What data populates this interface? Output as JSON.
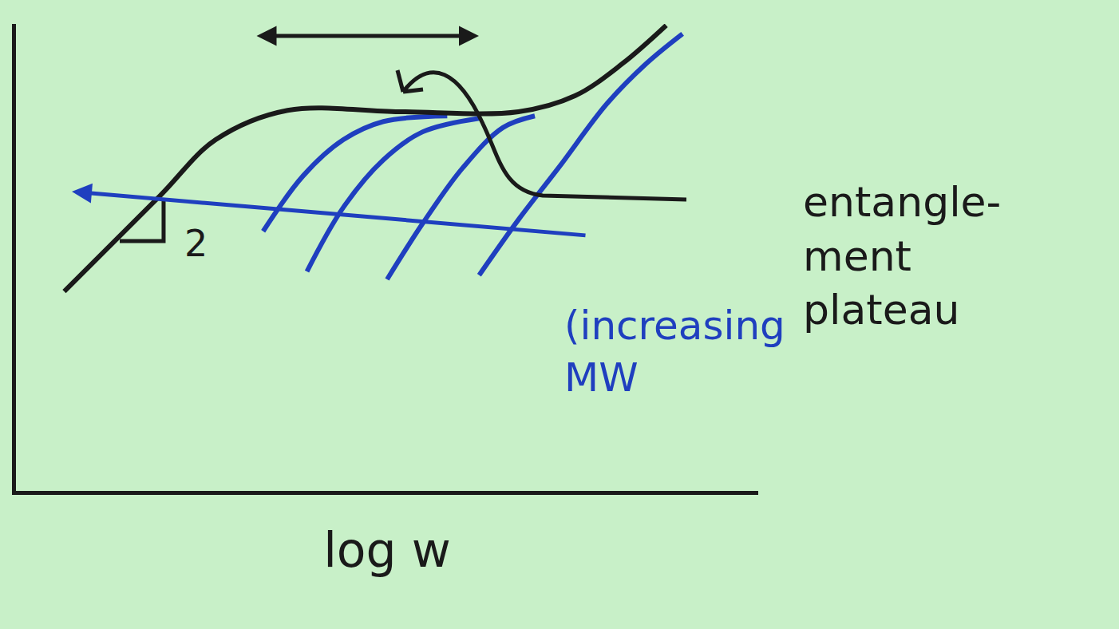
{
  "chart_data": {
    "type": "line",
    "x_label": "log w",
    "tick_labels": false,
    "grid": false,
    "xlim": [
      0,
      10
    ],
    "ylim": [
      0,
      10
    ],
    "series": [
      {
        "color": "#1f3fbf",
        "x": [
          3.33,
          3.87,
          4.41,
          4.95,
          5.81
        ],
        "values": [
          5.56,
          6.75,
          7.52,
          7.91,
          8.03
        ]
      },
      {
        "color": "#1f3fbf",
        "x": [
          3.92,
          4.41,
          4.95,
          5.48,
          6.24
        ],
        "values": [
          4.7,
          6.07,
          7.09,
          7.69,
          7.98
        ]
      },
      {
        "color": "#1f3fbf",
        "x": [
          5.0,
          5.48,
          6.02,
          6.56,
          6.99
        ],
        "values": [
          4.53,
          5.73,
          6.92,
          7.78,
          8.03
        ]
      },
      {
        "color": "#1f3fbf",
        "x": [
          6.24,
          6.77,
          7.31,
          7.96,
          8.49,
          8.98
        ],
        "values": [
          4.62,
          5.81,
          6.92,
          8.29,
          9.15,
          9.79
        ]
      },
      {
        "color": "#1a1a1a",
        "x": [
          0.65,
          1.94,
          2.69,
          3.66,
          5.16,
          6.77,
          7.53,
          8.17,
          8.76
        ],
        "values": [
          4.27,
          6.32,
          7.52,
          8.15,
          8.12,
          8.12,
          8.46,
          9.15,
          9.97
        ]
      }
    ],
    "annotations": [
      {
        "text": "entangle-\nment\nplateau",
        "color": "#1a1a1a"
      },
      {
        "text": "(increasing\nMW",
        "color": "#1f3fbf"
      },
      {
        "text": "2",
        "color": "#1a1a1a"
      }
    ]
  }
}
